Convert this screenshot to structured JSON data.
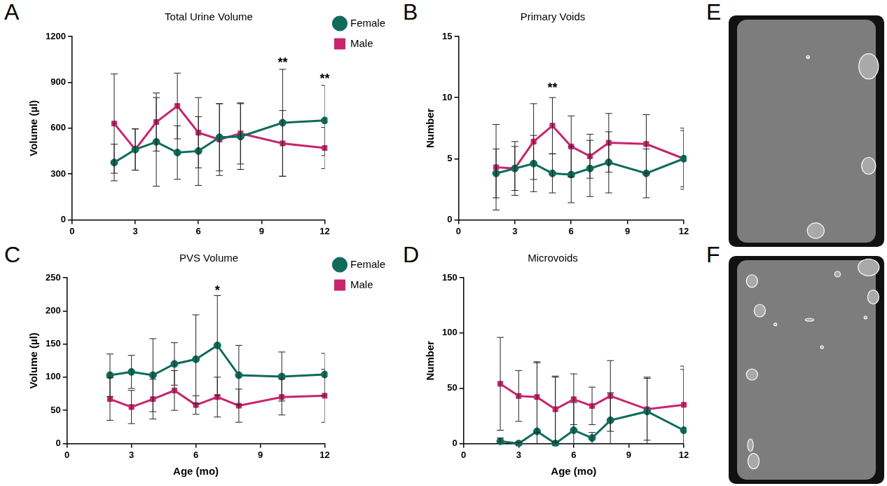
{
  "chart_data": [
    {
      "panel": "A",
      "type": "line",
      "title": "Total Urine Volume",
      "y_label": "Volume (µl)",
      "x": [
        2,
        3,
        4,
        5,
        6,
        7,
        8,
        10,
        12
      ],
      "xlim": [
        0,
        12
      ],
      "xticks": [
        0,
        3,
        6,
        9,
        12
      ],
      "ylim": [
        0,
        1200
      ],
      "yticks": [
        0,
        300,
        600,
        900,
        1200
      ],
      "grid": false,
      "legend": "right",
      "series": [
        {
          "name": "Female",
          "color": "#0f6b5a",
          "marker": "circle",
          "values": [
            375,
            460,
            510,
            440,
            450,
            540,
            545,
            635,
            650
          ],
          "errors": [
            120,
            135,
            290,
            175,
            225,
            220,
            215,
            350,
            230
          ]
        },
        {
          "name": "Male",
          "color": "#c8246c",
          "marker": "square",
          "values": [
            630,
            460,
            640,
            745,
            570,
            525,
            565,
            500,
            470
          ],
          "errors": [
            325,
            135,
            190,
            215,
            230,
            235,
            200,
            215,
            135
          ]
        }
      ],
      "annotations": [
        {
          "text": "**",
          "x": 10,
          "y": 1010
        },
        {
          "text": "**",
          "x": 12,
          "y": 905
        }
      ]
    },
    {
      "panel": "B",
      "type": "line",
      "title": "Primary Voids",
      "y_label": "Number",
      "x": [
        2,
        3,
        4,
        5,
        6,
        7,
        8,
        10,
        12
      ],
      "xlim": [
        0,
        12
      ],
      "xticks": [
        0,
        3,
        6,
        9,
        12
      ],
      "ylim": [
        0,
        15
      ],
      "yticks": [
        0,
        5,
        10,
        15
      ],
      "grid": false,
      "series": [
        {
          "name": "Female",
          "color": "#0f6b5a",
          "marker": "circle",
          "values": [
            3.8,
            4.2,
            4.6,
            3.8,
            3.7,
            4.2,
            4.7,
            3.8,
            5.0
          ],
          "errors": [
            2.0,
            1.8,
            2.3,
            1.6,
            2.3,
            2.3,
            2.5,
            2.0,
            2.3
          ]
        },
        {
          "name": "Male",
          "color": "#c8246c",
          "marker": "square",
          "values": [
            4.3,
            4.2,
            6.4,
            7.7,
            6.0,
            5.2,
            6.3,
            6.2,
            5.0
          ],
          "errors": [
            3.5,
            2.2,
            3.1,
            2.3,
            2.5,
            1.8,
            2.4,
            2.4,
            2.5
          ]
        }
      ],
      "annotations": [
        {
          "text": "**",
          "x": 5,
          "y": 10.6
        }
      ]
    },
    {
      "panel": "C",
      "type": "line",
      "title": "PVS Volume",
      "y_label": "Volume (µl)",
      "x_label": "Age (mo)",
      "x": [
        2,
        3,
        4,
        5,
        6,
        7,
        8,
        10,
        12
      ],
      "xlim": [
        0,
        12
      ],
      "xticks": [
        0,
        3,
        6,
        9,
        12
      ],
      "ylim": [
        0,
        250
      ],
      "yticks": [
        0,
        50,
        100,
        150,
        200,
        250
      ],
      "grid": false,
      "legend": "right",
      "series": [
        {
          "name": "Female",
          "color": "#0f6b5a",
          "marker": "circle",
          "values": [
            103,
            108,
            103,
            120,
            127,
            148,
            103,
            101,
            104
          ],
          "errors": [
            32,
            25,
            55,
            32,
            67,
            75,
            45,
            37,
            32
          ]
        },
        {
          "name": "Male",
          "color": "#c8246c",
          "marker": "square",
          "values": [
            67,
            55,
            67,
            80,
            58,
            70,
            57,
            70,
            72
          ],
          "errors": [
            32,
            25,
            30,
            30,
            14,
            30,
            25,
            27,
            40
          ]
        }
      ],
      "annotations": [
        {
          "text": "*",
          "x": 7,
          "y": 227
        }
      ]
    },
    {
      "panel": "D",
      "type": "line",
      "title": "Microvoids",
      "y_label": "Number",
      "x_label": "Age (mo)",
      "x": [
        2,
        3,
        4,
        5,
        6,
        7,
        8,
        10,
        12
      ],
      "xlim": [
        0,
        12
      ],
      "xticks": [
        0,
        3,
        6,
        9,
        12
      ],
      "ylim": [
        0,
        150
      ],
      "yticks": [
        0,
        50,
        100,
        150
      ],
      "grid": false,
      "series": [
        {
          "name": "Female",
          "color": "#0f6b5a",
          "marker": "circle",
          "values": [
            2,
            0,
            11,
            0,
            12,
            5,
            21,
            29,
            12
          ],
          "errors": [
            3,
            1,
            62,
            60,
            25,
            5,
            25,
            31,
            55
          ]
        },
        {
          "name": "Male",
          "color": "#c8246c",
          "marker": "square",
          "values": [
            54,
            43,
            42,
            31,
            40,
            34,
            43,
            31,
            35
          ],
          "errors": [
            42,
            23,
            32,
            30,
            23,
            17,
            32,
            28,
            35
          ]
        }
      ]
    }
  ],
  "images": [
    {
      "panel": "E"
    },
    {
      "panel": "F"
    }
  ]
}
